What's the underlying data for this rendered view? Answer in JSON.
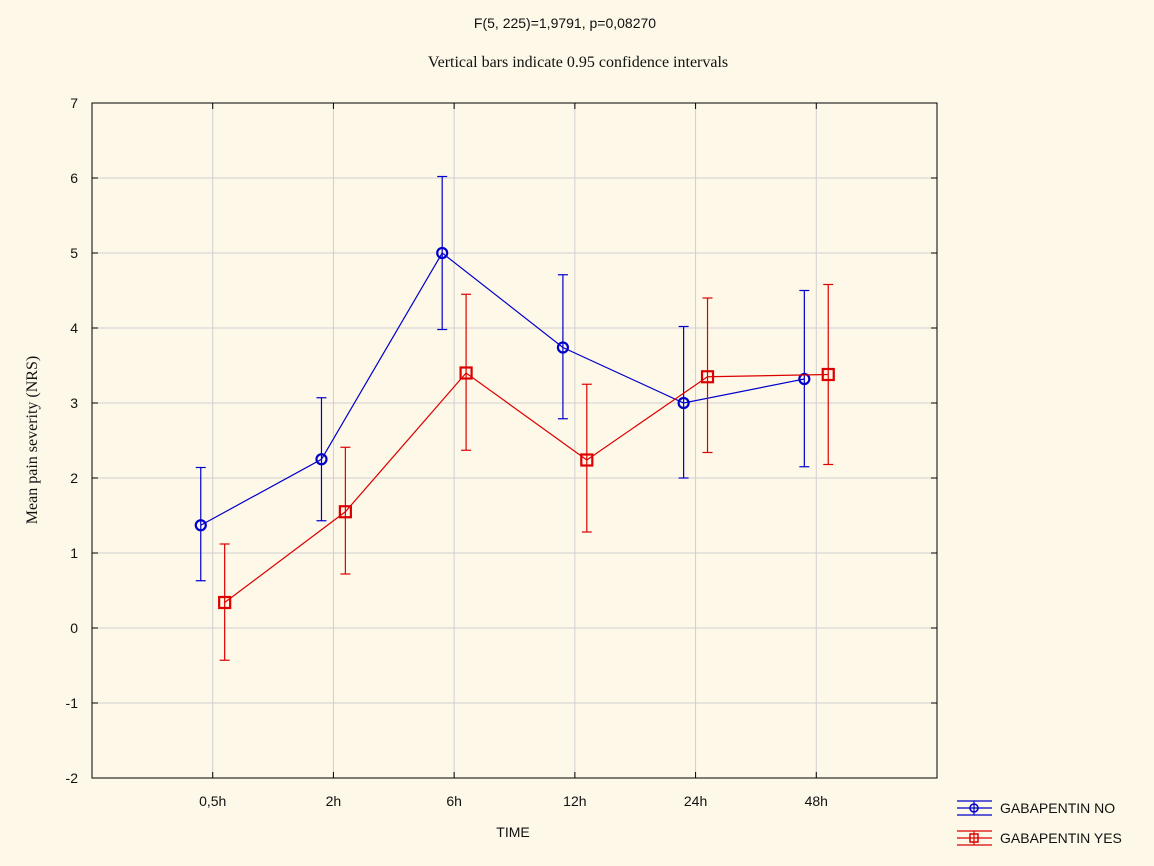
{
  "chart_data": {
    "type": "line",
    "title": "F(5, 225)=1,9791, p=0,08270",
    "subtitle": "Vertical bars indicate 0.95 confidence intervals",
    "xlabel": "TIME",
    "ylabel": "Mean pain severity (NRS)",
    "categories": [
      "0,5h",
      "2h",
      "6h",
      "12h",
      "24h",
      "48h"
    ],
    "ylim": [
      -2,
      7
    ],
    "yticks": [
      -2,
      -1,
      0,
      1,
      2,
      3,
      4,
      5,
      6,
      7
    ],
    "grid": true,
    "legend_position": "bottom-right outside",
    "series": [
      {
        "name": "GABAPENTIN NO",
        "color": "#0000cc",
        "marker": "circle",
        "values": [
          1.37,
          2.25,
          5.0,
          3.74,
          3.0,
          3.32
        ],
        "ci_low": [
          0.63,
          1.43,
          3.98,
          2.79,
          2.0,
          2.15
        ],
        "ci_high": [
          2.14,
          3.07,
          6.02,
          4.71,
          4.02,
          4.5
        ]
      },
      {
        "name": "GABAPENTIN YES",
        "color": "#dd0000",
        "marker": "square",
        "values": [
          0.34,
          1.55,
          3.4,
          2.24,
          3.35,
          3.38
        ],
        "ci_low": [
          -0.43,
          0.72,
          2.37,
          1.28,
          2.34,
          2.18
        ],
        "ci_high": [
          1.12,
          2.41,
          4.45,
          3.25,
          4.4,
          4.58
        ]
      }
    ]
  }
}
